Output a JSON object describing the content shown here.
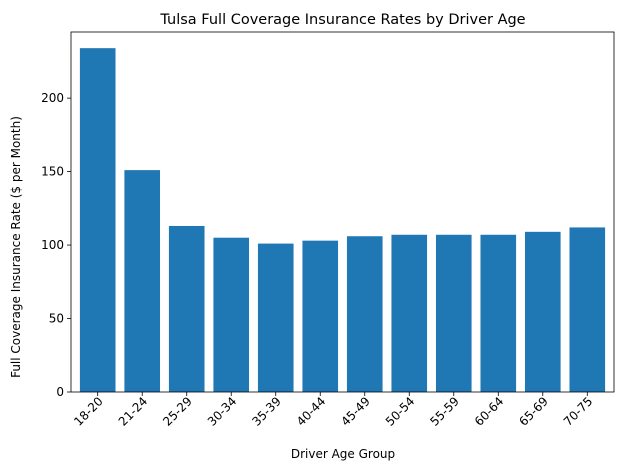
{
  "chart_data": {
    "type": "bar",
    "title": "Tulsa Full Coverage Insurance Rates by Driver Age",
    "xlabel": "Driver Age Group",
    "ylabel": "Full Coverage Insurance Rate ($ per Month)",
    "categories": [
      "18-20",
      "21-24",
      "25-29",
      "30-34",
      "35-39",
      "40-44",
      "45-49",
      "50-54",
      "55-59",
      "60-64",
      "65-69",
      "70-75"
    ],
    "values": [
      234,
      151,
      113,
      105,
      101,
      103,
      106,
      107,
      107,
      107,
      109,
      112
    ],
    "ylim": [
      0,
      245
    ],
    "yticks": [
      0,
      50,
      100,
      150,
      200
    ],
    "grid": false,
    "bar_color": "#1f77b4"
  }
}
